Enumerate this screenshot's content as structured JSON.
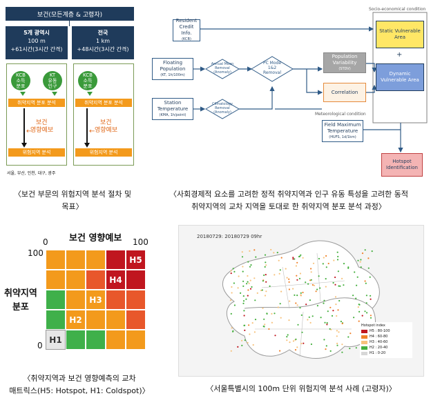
{
  "panel1": {
    "header": "보건(모든계층 & 고령자)",
    "col1_title": "5개 광역시",
    "col1_line2": "100 m",
    "col1_line3": "+61시간(3시간 간격)",
    "col2_title": "전국",
    "col2_line2": "1 km",
    "col2_line3": "+48시간(3시간 간격)",
    "circle_kcb": [
      "KCB",
      "소득",
      "분포"
    ],
    "circle_kt": [
      "KT",
      "유동",
      "인구"
    ],
    "circle_kcb2": [
      "KCB",
      "소득",
      "분포"
    ],
    "bar_dist": "취약지역 분포 분석",
    "forecast": [
      "보건",
      "영향예보"
    ],
    "bar_risk": "위험지역 분석",
    "cities": "서울, 부산, 인천, 대구, 광주",
    "caption": [
      "〈보건 부문의 위험지역 분석 절차 및",
      "목표〉"
    ]
  },
  "panel2": {
    "socio_label": "Socio-economical condition",
    "meteo_label": "Meteorological condition",
    "resident": [
      "Resident",
      "Credit Info."
    ],
    "resident_sub": "(KCB)",
    "floating": [
      "Floating",
      "Population"
    ],
    "floating_sub": "(KT, 1h/100m)",
    "station": [
      "Station",
      "Temperature"
    ],
    "station_sub": "(KMA, 1h/point)",
    "annual": [
      "Annual Mean",
      "Removal"
    ],
    "annual_sub": "(Anomaly)",
    "climatology": [
      "Climatology",
      "Removal"
    ],
    "climatology_sub": "(Anomaly)",
    "pcmode": [
      "PC Mode",
      "1&2",
      "Removal"
    ],
    "popvar": [
      "Population",
      "Variability"
    ],
    "popvar_sub": "(STDV)",
    "correlation": "Correlation",
    "static": [
      "Static Vulnerable",
      "Area"
    ],
    "plus": "+",
    "dynamic": [
      "Dynamic",
      "Vulnerable Area"
    ],
    "fieldmax": [
      "Field Maximum",
      "Temperature"
    ],
    "fieldmax_sub": "(HUFS, 1d/1km)",
    "hotspot": [
      "Hotspot",
      "Identification"
    ],
    "caption": [
      "〈사회경제적 요소를 고려한 정적 취약지역과 인구 유동 특성을 고려한 동적",
      "취약지역의 교차 지역을 토대로 한 취약지역 분포 분석 과정〉"
    ]
  },
  "panel3": {
    "title": "보건 영향예보",
    "x0": "0",
    "x100": "100",
    "y100": "100",
    "y0": "0",
    "ylabel": [
      "취약지역",
      "분포"
    ],
    "labels": {
      "h1": "H1",
      "h2": "H2",
      "h3": "H3",
      "h4": "H4",
      "h5": "H5"
    },
    "colors": {
      "gray": "#e6e6e6",
      "green": "#3fb04a",
      "orange": "#f39a1c",
      "darkorange": "#e8572b",
      "red": "#c0161f"
    },
    "caption": [
      "〈취약지역과 보건 영향예측의 교차",
      "매트릭스(H5: Hotspot, H1: Coldspot)〉"
    ]
  },
  "panel4": {
    "map_title": "20180729: 20180729 09hr",
    "legend_title": "Hotspot index",
    "legend": [
      {
        "label": "H5 : 80-100",
        "color": "#c0161f"
      },
      {
        "label": "H4 : 60-80",
        "color": "#f0812a"
      },
      {
        "label": "H3 : 40-60",
        "color": "#f7c27c"
      },
      {
        "label": "H2 : 20-40",
        "color": "#46b03f"
      },
      {
        "label": "H1 : 0-20",
        "color": "#d7d7d7"
      }
    ],
    "caption": "〈서울특별시의 100m 단위 위험지역 분석 사례 (고령자)〉"
  }
}
